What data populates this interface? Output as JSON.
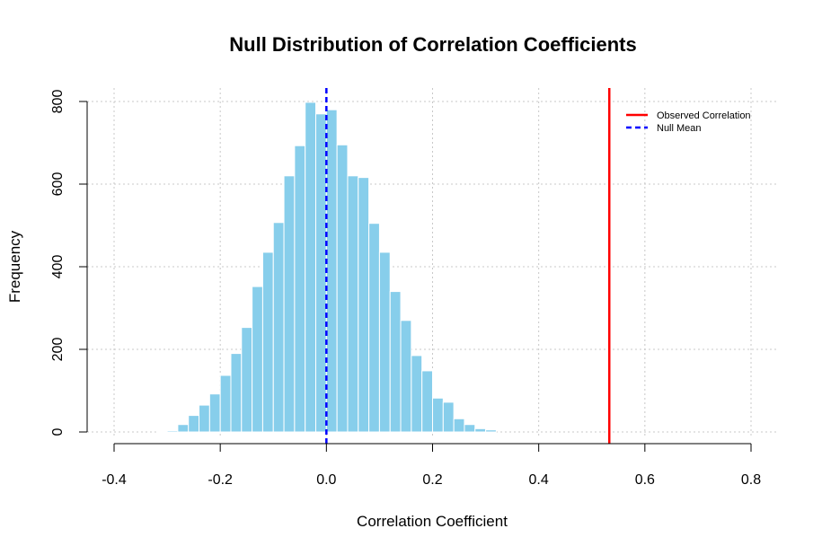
{
  "chart_data": {
    "type": "bar",
    "title": "Null Distribution of Correlation Coefficients",
    "xlabel": "Correlation Coefficient",
    "ylabel": "Frequency",
    "xlim": [
      -0.4,
      0.8
    ],
    "ylim": [
      0,
      800
    ],
    "x_ticks": [
      "-0.4",
      "-0.2",
      "0.0",
      "0.2",
      "0.4",
      "0.6",
      "0.8"
    ],
    "x_tick_values": [
      -0.4,
      -0.2,
      0.0,
      0.2,
      0.4,
      0.6,
      0.8
    ],
    "y_ticks": [
      "0",
      "200",
      "400",
      "600",
      "800"
    ],
    "y_tick_values": [
      0,
      200,
      400,
      600,
      800
    ],
    "grid": true,
    "bin_width": 0.02,
    "bin_starts": [
      -0.32,
      -0.3,
      -0.28,
      -0.26,
      -0.24,
      -0.22,
      -0.2,
      -0.18,
      -0.16,
      -0.14,
      -0.12,
      -0.1,
      -0.08,
      -0.06,
      -0.04,
      -0.02,
      0.0,
      0.02,
      0.04,
      0.06,
      0.08,
      0.1,
      0.12,
      0.14,
      0.16,
      0.18,
      0.2,
      0.22,
      0.24,
      0.26,
      0.28,
      0.3
    ],
    "values": [
      1,
      3,
      18,
      40,
      65,
      92,
      137,
      190,
      253,
      352,
      435,
      507,
      620,
      693,
      798,
      770,
      780,
      695,
      620,
      616,
      505,
      435,
      340,
      270,
      185,
      148,
      82,
      72,
      32,
      18,
      8,
      5
    ],
    "bar_color": "#87CEEB",
    "observed_correlation": 0.533,
    "null_mean": 0.0,
    "observed_color": "#FF0000",
    "null_mean_color": "#0000FF",
    "legend": {
      "position": "top-right",
      "entries": [
        {
          "label": "Observed Correlation",
          "color": "#FF0000",
          "style": "solid"
        },
        {
          "label": "Null Mean",
          "color": "#0000FF",
          "style": "dashed"
        }
      ]
    }
  }
}
